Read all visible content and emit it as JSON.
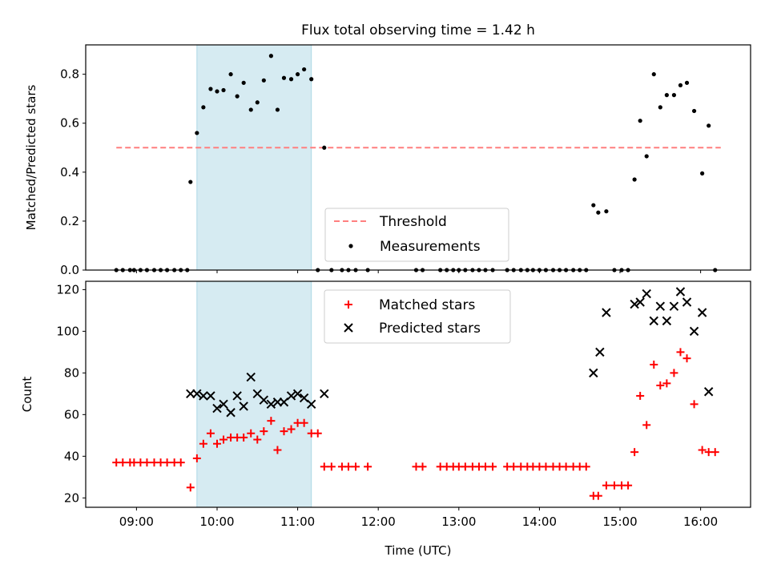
{
  "title": "Flux total observing time = 1.42 h",
  "colors": {
    "shade": "#add8e6",
    "threshold": "#ff7f7f",
    "measurements": "#000000",
    "matched": "#ff0000",
    "predicted": "#000000"
  },
  "chart_data": [
    {
      "type": "scatter",
      "ylabel": "Matched/Predicted stars",
      "ylim": [
        0,
        0.92
      ],
      "yticks": [
        0.0,
        0.2,
        0.4,
        0.6,
        0.8
      ],
      "ytick_labels": [
        "0.0",
        "0.2",
        "0.4",
        "0.6",
        "0.8"
      ],
      "shaded_span_hours": [
        9.75,
        11.17
      ],
      "legend": {
        "loc": "lower-center",
        "items": [
          "Threshold",
          "Measurements"
        ]
      },
      "threshold": {
        "name": "Threshold",
        "y": 0.5,
        "x_range_hours": [
          8.75,
          16.25
        ],
        "style": "dashed"
      },
      "series": [
        {
          "name": "Measurements",
          "marker": "dot",
          "x_hours": [
            8.75,
            8.83,
            8.92,
            8.97,
            9.05,
            9.13,
            9.22,
            9.3,
            9.38,
            9.47,
            9.55,
            9.63,
            9.67,
            9.75,
            9.83,
            9.92,
            10.0,
            10.08,
            10.17,
            10.25,
            10.33,
            10.42,
            10.5,
            10.58,
            10.67,
            10.75,
            10.83,
            10.92,
            11.0,
            11.08,
            11.17,
            11.25,
            11.33,
            11.42,
            11.55,
            11.63,
            11.72,
            11.87,
            12.47,
            12.55,
            12.77,
            12.85,
            12.93,
            13.0,
            13.08,
            13.17,
            13.25,
            13.33,
            13.42,
            13.6,
            13.68,
            13.77,
            13.85,
            13.92,
            14.0,
            14.08,
            14.17,
            14.25,
            14.33,
            14.42,
            14.5,
            14.58,
            14.67,
            14.73,
            14.83,
            14.93,
            15.02,
            15.1,
            15.18,
            15.25,
            15.33,
            15.42,
            15.5,
            15.58,
            15.67,
            15.75,
            15.83,
            15.92,
            16.02,
            16.1,
            16.18
          ],
          "y": [
            0,
            0,
            0,
            0,
            0,
            0,
            0,
            0,
            0,
            0,
            0,
            0,
            0.36,
            0.56,
            0.665,
            0.74,
            0.73,
            0.735,
            0.8,
            0.71,
            0.765,
            0.655,
            0.685,
            0.775,
            0.875,
            0.655,
            0.785,
            0.78,
            0.8,
            0.82,
            0.78,
            0,
            0.5,
            0,
            0,
            0,
            0,
            0,
            0,
            0,
            0,
            0,
            0,
            0,
            0,
            0,
            0,
            0,
            0,
            0,
            0,
            0,
            0,
            0,
            0,
            0,
            0,
            0,
            0,
            0,
            0,
            0,
            0.265,
            0.235,
            0.24,
            0,
            0,
            0,
            0.37,
            0.61,
            0.465,
            0.8,
            0.665,
            0.715,
            0.715,
            0.755,
            0.765,
            0.65,
            0.395,
            0.59,
            0
          ]
        }
      ]
    },
    {
      "type": "scatter",
      "title": "",
      "xlabel": "Time (UTC)",
      "ylabel": "Count",
      "xlim_hours": [
        8.37,
        16.62
      ],
      "ylim": [
        15.5,
        124
      ],
      "xticks_hours": [
        9,
        10,
        11,
        12,
        13,
        14,
        15,
        16
      ],
      "xtick_labels": [
        "09:00",
        "10:00",
        "11:00",
        "12:00",
        "13:00",
        "14:00",
        "15:00",
        "16:00"
      ],
      "yticks": [
        20,
        40,
        60,
        80,
        100,
        120
      ],
      "ytick_labels": [
        "20",
        "40",
        "60",
        "80",
        "100",
        "120"
      ],
      "shaded_span_hours": [
        9.75,
        11.17
      ],
      "legend": {
        "loc": "upper-center",
        "items": [
          "Matched stars",
          "Predicted stars"
        ]
      },
      "series": [
        {
          "name": "Matched stars",
          "marker": "plus",
          "x_hours": [
            8.75,
            8.83,
            8.92,
            8.97,
            9.05,
            9.13,
            9.22,
            9.3,
            9.38,
            9.47,
            9.55,
            9.67,
            9.75,
            9.83,
            9.92,
            10.0,
            10.08,
            10.17,
            10.25,
            10.33,
            10.42,
            10.5,
            10.58,
            10.67,
            10.75,
            10.83,
            10.92,
            11.0,
            11.08,
            11.17,
            11.25,
            11.33,
            11.42,
            11.55,
            11.63,
            11.72,
            11.87,
            12.47,
            12.55,
            12.77,
            12.85,
            12.93,
            13.0,
            13.08,
            13.17,
            13.25,
            13.33,
            13.42,
            13.6,
            13.68,
            13.77,
            13.85,
            13.92,
            14.0,
            14.08,
            14.17,
            14.25,
            14.33,
            14.42,
            14.5,
            14.58,
            14.67,
            14.73,
            14.83,
            14.93,
            15.02,
            15.1,
            15.18,
            15.25,
            15.33,
            15.42,
            15.5,
            15.58,
            15.67,
            15.75,
            15.83,
            15.92,
            16.02,
            16.1,
            16.18
          ],
          "y": [
            37,
            37,
            37,
            37,
            37,
            37,
            37,
            37,
            37,
            37,
            37,
            25,
            39,
            46,
            51,
            46,
            48,
            49,
            49,
            49,
            51,
            48,
            52,
            57,
            43,
            52,
            53,
            56,
            56,
            51,
            51,
            35,
            35,
            35,
            35,
            35,
            35,
            35,
            35,
            35,
            35,
            35,
            35,
            35,
            35,
            35,
            35,
            35,
            35,
            35,
            35,
            35,
            35,
            35,
            35,
            35,
            35,
            35,
            35,
            35,
            35,
            21,
            21,
            26,
            26,
            26,
            26,
            42,
            69,
            55,
            84,
            74,
            75,
            80,
            90,
            87,
            65,
            43,
            42,
            42
          ]
        },
        {
          "name": "Predicted stars",
          "marker": "x",
          "x_hours": [
            9.67,
            9.75,
            9.83,
            9.92,
            10.0,
            10.08,
            10.17,
            10.25,
            10.33,
            10.42,
            10.5,
            10.58,
            10.67,
            10.75,
            10.83,
            10.92,
            11.0,
            11.08,
            11.17,
            11.33,
            14.67,
            14.75,
            14.83,
            15.18,
            15.25,
            15.33,
            15.42,
            15.5,
            15.58,
            15.67,
            15.75,
            15.83,
            15.92,
            16.02,
            16.1
          ],
          "y": [
            70,
            70,
            69,
            69,
            63,
            65,
            61,
            69,
            64,
            78,
            70,
            67,
            65,
            66,
            66,
            69,
            70,
            68,
            65,
            70,
            80,
            90,
            109,
            113,
            114,
            118,
            105,
            112,
            105,
            112,
            119,
            114,
            100,
            109,
            71
          ]
        }
      ]
    }
  ]
}
